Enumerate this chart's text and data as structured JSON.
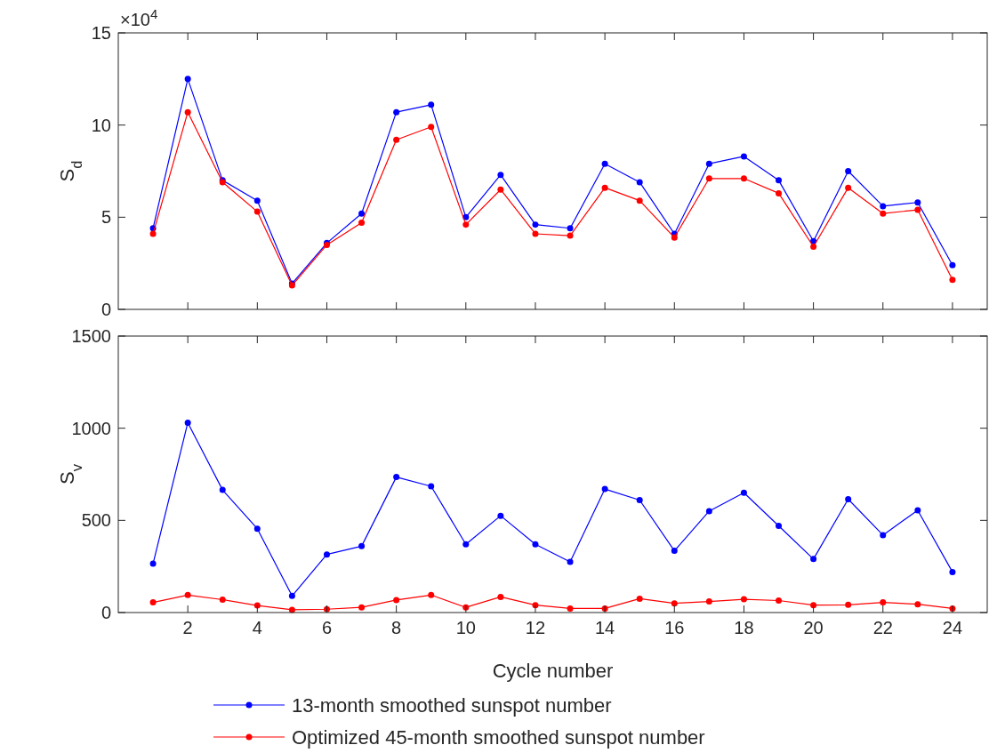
{
  "chart_data": [
    {
      "type": "line",
      "ylabel": "S$_{d}$",
      "annotations": [
        "×10$^{4}$"
      ],
      "x": [
        1,
        2,
        3,
        4,
        5,
        6,
        7,
        8,
        9,
        10,
        11,
        12,
        13,
        14,
        15,
        16,
        17,
        18,
        19,
        20,
        21,
        22,
        23,
        24
      ],
      "xlim": [
        0,
        25
      ],
      "xticks": [
        2,
        4,
        6,
        8,
        10,
        12,
        14,
        16,
        18,
        20,
        22,
        24
      ],
      "ylim": [
        0,
        15
      ],
      "yticks": [
        0,
        5,
        10,
        15
      ],
      "tick_labels": "y",
      "marker": "circle",
      "grid": false,
      "series": [
        {
          "color": "#0000ff",
          "values": [
            4.4,
            12.5,
            7.0,
            5.9,
            1.4,
            3.6,
            5.2,
            10.7,
            11.1,
            5.0,
            7.3,
            4.6,
            4.4,
            7.9,
            6.9,
            4.1,
            7.9,
            8.3,
            7.0,
            3.7,
            7.5,
            5.6,
            5.8,
            2.4
          ]
        },
        {
          "color": "#ff0000",
          "values": [
            4.1,
            10.7,
            6.9,
            5.3,
            1.3,
            3.5,
            4.7,
            9.2,
            9.9,
            4.6,
            6.5,
            4.1,
            4.0,
            6.6,
            5.9,
            3.9,
            7.1,
            7.1,
            6.3,
            3.4,
            6.6,
            5.2,
            5.4,
            1.6
          ]
        }
      ]
    },
    {
      "type": "line",
      "ylabel": "S$_{v}$",
      "xlabel": "Cycle number",
      "x": [
        1,
        2,
        3,
        4,
        5,
        6,
        7,
        8,
        9,
        10,
        11,
        12,
        13,
        14,
        15,
        16,
        17,
        18,
        19,
        20,
        21,
        22,
        23,
        24
      ],
      "xlim": [
        0,
        25
      ],
      "xticks": [
        2,
        4,
        6,
        8,
        10,
        12,
        14,
        16,
        18,
        20,
        22,
        24
      ],
      "ylim": [
        0,
        1500
      ],
      "yticks": [
        0,
        500,
        1000,
        1500
      ],
      "marker": "circle",
      "grid": false,
      "legend": "bottom",
      "series": [
        {
          "name": "13-month smoothed sunspot number",
          "color": "#0000ff",
          "values": [
            265,
            1030,
            665,
            455,
            90,
            315,
            360,
            735,
            685,
            370,
            525,
            370,
            275,
            670,
            610,
            335,
            550,
            650,
            470,
            290,
            615,
            420,
            555,
            220
          ]
        },
        {
          "name": "Optimized 45-month smoothed sunspot number",
          "color": "#ff0000",
          "values": [
            55,
            95,
            70,
            38,
            15,
            18,
            28,
            68,
            95,
            28,
            85,
            40,
            22,
            22,
            75,
            50,
            60,
            72,
            65,
            40,
            42,
            55,
            45,
            22
          ]
        }
      ]
    }
  ]
}
